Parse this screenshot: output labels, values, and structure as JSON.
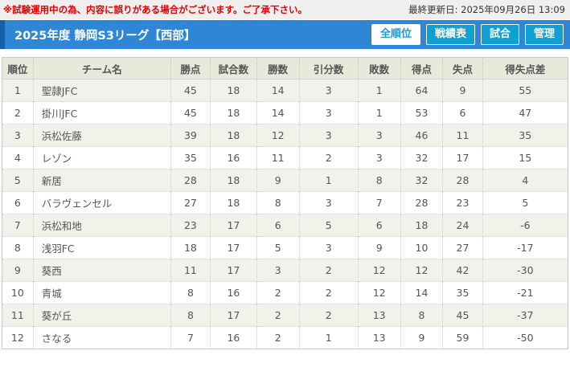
{
  "top": {
    "notice": "※試験運用中の為、内容に誤りがある場合がございます。ご了承下さい。",
    "last_updated": "最終更新日: 2025年09月26日 13:09"
  },
  "header": {
    "title": "2025年度 静岡S3リーグ【西部】",
    "buttons": [
      {
        "label": "全順位",
        "active": true
      },
      {
        "label": "戦績表",
        "active": false
      },
      {
        "label": "試合",
        "active": false
      },
      {
        "label": "管理",
        "active": false
      }
    ]
  },
  "table": {
    "columns": [
      "順位",
      "チーム名",
      "勝点",
      "試合数",
      "勝数",
      "引分数",
      "敗数",
      "得点",
      "失点",
      "得失点差"
    ],
    "rows": [
      [
        "1",
        "聖隷JFC",
        "45",
        "18",
        "14",
        "3",
        "1",
        "64",
        "9",
        "55"
      ],
      [
        "2",
        "掛川JFC",
        "45",
        "18",
        "14",
        "3",
        "1",
        "53",
        "6",
        "47"
      ],
      [
        "3",
        "浜松佐藤",
        "39",
        "18",
        "12",
        "3",
        "3",
        "46",
        "11",
        "35"
      ],
      [
        "4",
        "レゾン",
        "35",
        "16",
        "11",
        "2",
        "3",
        "32",
        "17",
        "15"
      ],
      [
        "5",
        "新居",
        "28",
        "18",
        "9",
        "1",
        "8",
        "32",
        "28",
        "4"
      ],
      [
        "6",
        "バラヴェンセル",
        "27",
        "18",
        "8",
        "3",
        "7",
        "28",
        "23",
        "5"
      ],
      [
        "7",
        "浜松和地",
        "23",
        "17",
        "6",
        "5",
        "6",
        "18",
        "24",
        "-6"
      ],
      [
        "8",
        "浅羽FC",
        "18",
        "17",
        "5",
        "3",
        "9",
        "10",
        "27",
        "-17"
      ],
      [
        "9",
        "葵西",
        "11",
        "17",
        "3",
        "2",
        "12",
        "12",
        "42",
        "-30"
      ],
      [
        "10",
        "青城",
        "8",
        "16",
        "2",
        "2",
        "12",
        "14",
        "35",
        "-21"
      ],
      [
        "11",
        "葵が丘",
        "8",
        "17",
        "2",
        "2",
        "13",
        "8",
        "45",
        "-37"
      ],
      [
        "12",
        "さなる",
        "7",
        "16",
        "2",
        "1",
        "13",
        "9",
        "59",
        "-50"
      ]
    ]
  },
  "colors": {
    "notice_red": "#e60000",
    "header_bar_blue": "#2e87d6",
    "header_accent_blue": "#1660a7",
    "button_cyan": "#0da2d3",
    "active_button_text": "#149ed8",
    "table_header_bg": "#e9e9db",
    "odd_row_bg": "#f2f2ea"
  }
}
